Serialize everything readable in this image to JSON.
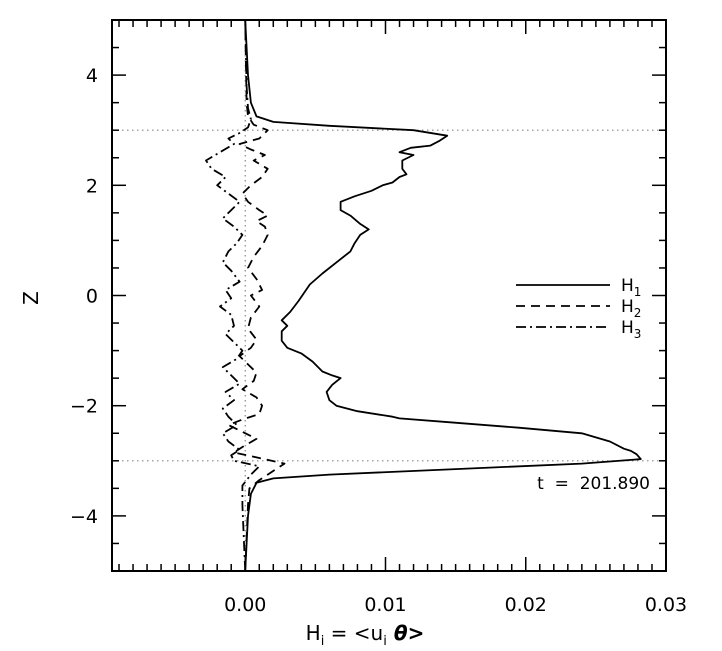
{
  "chart_data": {
    "type": "line",
    "xlabel": "H",
    "xlabel_sub": "i",
    "xlabel_rest": " = <u",
    "xlabel_sub2": "i",
    "xlabel_theta": " θ>",
    "ylabel": "Z",
    "xlim": [
      -0.0095,
      0.03
    ],
    "ylim": [
      -5,
      5
    ],
    "xticks": [
      0.0,
      0.01,
      0.02,
      0.03
    ],
    "xtick_labels": [
      "0.00",
      "0.01",
      "0.02",
      "0.03"
    ],
    "yticks": [
      -4,
      -2,
      0,
      2,
      4
    ],
    "ytick_labels": [
      "−4",
      "−2",
      "0",
      "2",
      "4"
    ],
    "reference_lines": {
      "y": [
        3,
        -3
      ],
      "x": [
        0
      ]
    },
    "legend_placement": "right",
    "annotation": "t  =  201.890",
    "series": [
      {
        "name": "H",
        "name_sub": "1",
        "dash": "solid",
        "points": [
          [
            0.0,
            -5
          ],
          [
            0.0001,
            -4.5
          ],
          [
            0.0002,
            -4.0
          ],
          [
            0.0004,
            -3.6
          ],
          [
            0.0008,
            -3.4
          ],
          [
            0.002,
            -3.32
          ],
          [
            0.006,
            -3.25
          ],
          [
            0.015,
            -3.15
          ],
          [
            0.024,
            -3.05
          ],
          [
            0.0282,
            -2.97
          ],
          [
            0.0279,
            -2.88
          ],
          [
            0.0275,
            -2.82
          ],
          [
            0.027,
            -2.78
          ],
          [
            0.026,
            -2.65
          ],
          [
            0.024,
            -2.5
          ],
          [
            0.0195,
            -2.4
          ],
          [
            0.0145,
            -2.3
          ],
          [
            0.011,
            -2.23
          ],
          [
            0.0105,
            -2.2
          ],
          [
            0.008,
            -2.1
          ],
          [
            0.0065,
            -2.0
          ],
          [
            0.006,
            -1.9
          ],
          [
            0.0058,
            -1.75
          ],
          [
            0.0062,
            -1.62
          ],
          [
            0.0068,
            -1.5
          ],
          [
            0.0062,
            -1.45
          ],
          [
            0.0055,
            -1.38
          ],
          [
            0.0048,
            -1.2
          ],
          [
            0.004,
            -1.05
          ],
          [
            0.003,
            -0.95
          ],
          [
            0.0026,
            -0.82
          ],
          [
            0.0026,
            -0.65
          ],
          [
            0.003,
            -0.55
          ],
          [
            0.0026,
            -0.45
          ],
          [
            0.0032,
            -0.3
          ],
          [
            0.0038,
            -0.1
          ],
          [
            0.0046,
            0.2
          ],
          [
            0.0055,
            0.4
          ],
          [
            0.0065,
            0.6
          ],
          [
            0.0075,
            0.8
          ],
          [
            0.0078,
            0.95
          ],
          [
            0.0082,
            1.1
          ],
          [
            0.0088,
            1.2
          ],
          [
            0.0082,
            1.3
          ],
          [
            0.0075,
            1.45
          ],
          [
            0.0068,
            1.55
          ],
          [
            0.0068,
            1.7
          ],
          [
            0.0078,
            1.8
          ],
          [
            0.009,
            1.9
          ],
          [
            0.0098,
            2.0
          ],
          [
            0.0105,
            2.05
          ],
          [
            0.011,
            2.15
          ],
          [
            0.0115,
            2.2
          ],
          [
            0.0112,
            2.3
          ],
          [
            0.0112,
            2.45
          ],
          [
            0.012,
            2.55
          ],
          [
            0.011,
            2.6
          ],
          [
            0.0118,
            2.68
          ],
          [
            0.0132,
            2.72
          ],
          [
            0.0138,
            2.8
          ],
          [
            0.0144,
            2.9
          ],
          [
            0.012,
            3.0
          ],
          [
            0.006,
            3.08
          ],
          [
            0.002,
            3.15
          ],
          [
            0.0008,
            3.25
          ],
          [
            0.0004,
            3.5
          ],
          [
            0.0002,
            4.0
          ],
          [
            0.0001,
            4.5
          ],
          [
            0.0,
            5
          ]
        ]
      },
      {
        "name": "H",
        "name_sub": "2",
        "dash": "dashed",
        "points": [
          [
            0.0,
            -5
          ],
          [
            0.0001,
            -4.4
          ],
          [
            0.0002,
            -3.8
          ],
          [
            0.0003,
            -3.5
          ],
          [
            0.001,
            -3.35
          ],
          [
            0.0016,
            -3.25
          ],
          [
            0.0028,
            -3.05
          ],
          [
            0.001,
            -2.95
          ],
          [
            -0.0008,
            -2.85
          ],
          [
            -0.0002,
            -2.75
          ],
          [
            0.0008,
            -2.6
          ],
          [
            -0.0004,
            -2.45
          ],
          [
            -0.0012,
            -2.35
          ],
          [
            -0.0002,
            -2.25
          ],
          [
            0.001,
            -2.15
          ],
          [
            0.0012,
            -2.0
          ],
          [
            0.0008,
            -1.85
          ],
          [
            -0.0002,
            -1.7
          ],
          [
            0.0006,
            -1.55
          ],
          [
            0.0008,
            -1.4
          ],
          [
            0.0002,
            -1.25
          ],
          [
            -0.0004,
            -1.1
          ],
          [
            0.0004,
            -0.95
          ],
          [
            0.0008,
            -0.8
          ],
          [
            0.0002,
            -0.6
          ],
          [
            0.0004,
            -0.4
          ],
          [
            0.001,
            -0.2
          ],
          [
            0.0004,
            0.0
          ],
          [
            0.0012,
            0.1
          ],
          [
            0.0008,
            0.3
          ],
          [
            0.0002,
            0.5
          ],
          [
            0.0006,
            0.7
          ],
          [
            0.0012,
            0.9
          ],
          [
            0.0016,
            1.1
          ],
          [
            0.0014,
            1.25
          ],
          [
            0.0008,
            1.35
          ],
          [
            0.0016,
            1.45
          ],
          [
            0.001,
            1.55
          ],
          [
            0.0002,
            1.7
          ],
          [
            -0.0002,
            1.85
          ],
          [
            0.0004,
            2.0
          ],
          [
            0.0012,
            2.15
          ],
          [
            0.0016,
            2.3
          ],
          [
            0.0006,
            2.45
          ],
          [
            0.0014,
            2.55
          ],
          [
            0.0004,
            2.65
          ],
          [
            -0.0004,
            2.75
          ],
          [
            0.001,
            2.85
          ],
          [
            0.0016,
            3.0
          ],
          [
            0.0006,
            3.1
          ],
          [
            0.0002,
            3.25
          ],
          [
            0.0001,
            3.5
          ],
          [
            0.0,
            5
          ]
        ]
      },
      {
        "name": "H",
        "name_sub": "3",
        "dash": "dashdot",
        "points": [
          [
            0.0,
            -5
          ],
          [
            -0.0001,
            -4.4
          ],
          [
            -0.0002,
            -3.8
          ],
          [
            -0.0002,
            -3.45
          ],
          [
            0.0004,
            -3.25
          ],
          [
            0.001,
            -3.1
          ],
          [
            -0.0008,
            -3.0
          ],
          [
            -0.001,
            -2.9
          ],
          [
            -0.0004,
            -2.8
          ],
          [
            -0.0012,
            -2.65
          ],
          [
            -0.0016,
            -2.5
          ],
          [
            -0.0006,
            -2.35
          ],
          [
            -0.0012,
            -2.2
          ],
          [
            -0.0016,
            -2.05
          ],
          [
            -0.0008,
            -1.9
          ],
          [
            -0.0014,
            -1.75
          ],
          [
            -0.0004,
            -1.6
          ],
          [
            -0.001,
            -1.45
          ],
          [
            -0.0016,
            -1.3
          ],
          [
            -0.0006,
            -1.15
          ],
          [
            -0.0002,
            -1.0
          ],
          [
            -0.0008,
            -0.85
          ],
          [
            -0.0014,
            -0.7
          ],
          [
            -0.0008,
            -0.55
          ],
          [
            -0.001,
            -0.35
          ],
          [
            -0.0018,
            -0.2
          ],
          [
            -0.001,
            -0.05
          ],
          [
            -0.0014,
            0.1
          ],
          [
            -0.0004,
            0.25
          ],
          [
            -0.001,
            0.45
          ],
          [
            -0.0016,
            0.6
          ],
          [
            -0.0012,
            0.8
          ],
          [
            -0.0006,
            0.95
          ],
          [
            -0.0002,
            1.1
          ],
          [
            -0.0008,
            1.25
          ],
          [
            -0.0016,
            1.4
          ],
          [
            -0.001,
            1.55
          ],
          [
            -0.0004,
            1.7
          ],
          [
            -0.0012,
            1.85
          ],
          [
            -0.002,
            2.0
          ],
          [
            -0.0014,
            2.15
          ],
          [
            -0.0024,
            2.3
          ],
          [
            -0.0028,
            2.45
          ],
          [
            -0.0018,
            2.6
          ],
          [
            -0.0008,
            2.75
          ],
          [
            -0.0012,
            2.85
          ],
          [
            -0.0004,
            2.95
          ],
          [
            0.0002,
            3.05
          ],
          [
            0.0004,
            3.2
          ],
          [
            0.0002,
            3.4
          ],
          [
            0.0001,
            3.8
          ],
          [
            0.0,
            5
          ]
        ]
      }
    ]
  }
}
